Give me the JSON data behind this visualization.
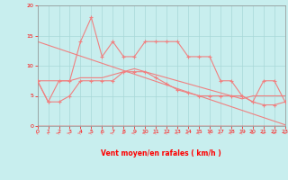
{
  "x": [
    0,
    1,
    2,
    3,
    4,
    5,
    6,
    7,
    8,
    9,
    10,
    11,
    12,
    13,
    14,
    15,
    16,
    17,
    18,
    19,
    20,
    21,
    22,
    23
  ],
  "rafales": [
    7.5,
    4.0,
    7.5,
    7.5,
    14.0,
    18.0,
    11.5,
    14.0,
    11.5,
    11.5,
    14.0,
    14.0,
    14.0,
    14.0,
    11.5,
    11.5,
    11.5,
    7.5,
    7.5,
    5.0,
    4.0,
    7.5,
    7.5,
    4.0
  ],
  "moyen": [
    7.5,
    4.0,
    4.0,
    5.0,
    7.5,
    7.5,
    7.5,
    7.5,
    9.0,
    9.0,
    9.0,
    8.0,
    7.0,
    6.0,
    5.5,
    5.0,
    5.0,
    5.0,
    5.0,
    5.0,
    4.0,
    3.5,
    3.5,
    4.0
  ],
  "trend_decline": [
    14.0,
    13.4,
    12.8,
    12.2,
    11.6,
    11.0,
    10.4,
    9.8,
    9.2,
    8.6,
    8.0,
    7.4,
    6.8,
    6.2,
    5.6,
    5.0,
    4.4,
    3.8,
    3.2,
    2.6,
    2.0,
    1.4,
    0.8,
    0.2
  ],
  "trend_hump": [
    7.5,
    7.5,
    7.5,
    7.5,
    8.0,
    8.0,
    8.0,
    8.5,
    9.0,
    9.5,
    9.0,
    8.5,
    8.0,
    7.5,
    7.0,
    6.5,
    6.0,
    5.5,
    5.0,
    4.5,
    5.0,
    5.0,
    5.0,
    5.0
  ],
  "bg_color": "#c8eeee",
  "grid_color": "#a8d8d8",
  "line_color": "#f08080",
  "xlabel": "Vent moyen/en rafales ( km/h )",
  "ylim_min": 0,
  "ylim_max": 20,
  "xlim_min": 0,
  "xlim_max": 23,
  "arrow_angles": [
    225,
    225,
    270,
    270,
    270,
    270,
    225,
    270,
    315,
    270,
    270,
    270,
    270,
    270,
    270,
    270,
    225,
    270,
    270,
    270,
    315,
    315,
    315,
    315
  ]
}
